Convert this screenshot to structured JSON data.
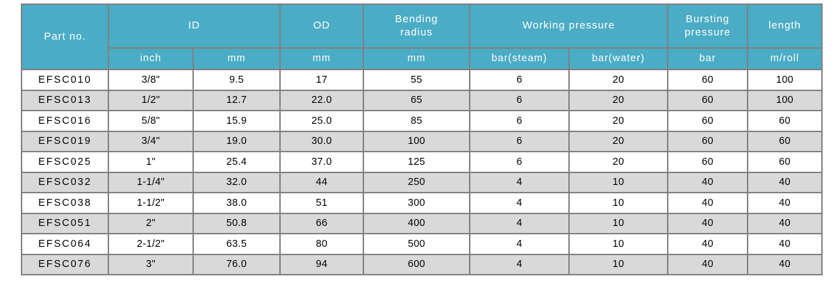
{
  "table": {
    "header_groups": [
      {
        "label": "Part no.",
        "rowspan": 2,
        "colspan": 1
      },
      {
        "label": "ID",
        "rowspan": 1,
        "colspan": 2
      },
      {
        "label": "OD",
        "rowspan": 1,
        "colspan": 1
      },
      {
        "label": "Bending\nradius",
        "rowspan": 1,
        "colspan": 1
      },
      {
        "label": "Working pressure",
        "rowspan": 1,
        "colspan": 2
      },
      {
        "label": "Bursting\npressure",
        "rowspan": 1,
        "colspan": 1
      },
      {
        "label": "length",
        "rowspan": 1,
        "colspan": 1
      }
    ],
    "sub_headers": [
      "inch",
      "mm",
      "mm",
      "mm",
      "bar(steam)",
      "bar(water)",
      "bar",
      "m/roll"
    ],
    "rows": [
      [
        "EFSC010",
        "3/8\"",
        "9.5",
        "17",
        "55",
        "6",
        "20",
        "60",
        "100"
      ],
      [
        "EFSC013",
        "1/2\"",
        "12.7",
        "22.0",
        "65",
        "6",
        "20",
        "60",
        "100"
      ],
      [
        "EFSC016",
        "5/8\"",
        "15.9",
        "25.0",
        "85",
        "6",
        "20",
        "60",
        "60"
      ],
      [
        "EFSC019",
        "3/4\"",
        "19.0",
        "30.0",
        "100",
        "6",
        "20",
        "60",
        "60"
      ],
      [
        "EFSC025",
        "1\"",
        "25.4",
        "37.0",
        "125",
        "6",
        "20",
        "60",
        "60"
      ],
      [
        "EFSC032",
        "1-1/4\"",
        "32.0",
        "44",
        "250",
        "4",
        "10",
        "40",
        "40"
      ],
      [
        "EFSC038",
        "1-1/2\"",
        "38.0",
        "51",
        "300",
        "4",
        "10",
        "40",
        "40"
      ],
      [
        "EFSC051",
        "2\"",
        "50.8",
        "66",
        "400",
        "4",
        "10",
        "40",
        "40"
      ],
      [
        "EFSC064",
        "2-1/2\"",
        "63.5",
        "80",
        "500",
        "4",
        "10",
        "40",
        "40"
      ],
      [
        "EFSC076",
        "3\"",
        "76.0",
        "94",
        "600",
        "4",
        "10",
        "40",
        "40"
      ]
    ]
  },
  "colors": {
    "header_bg": "#4BACC6",
    "header_text": "#FFFFFF",
    "row_bg": "#FFFFFF",
    "row_alt_bg": "#D9D9D9",
    "border": "#808080",
    "body_text": "#000000"
  }
}
